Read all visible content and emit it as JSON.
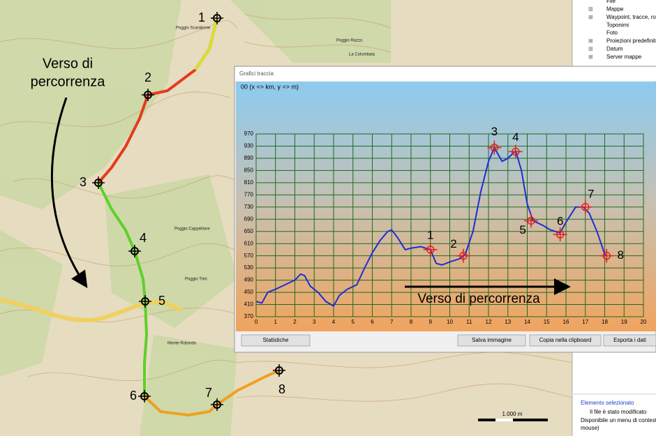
{
  "tree": {
    "items": [
      "File",
      "Mappe",
      "Waypoint, tracce, rotte",
      "Toponimi",
      "Foto",
      "Proiezioni predefinite",
      "Datum",
      "Server mappe"
    ]
  },
  "status": {
    "heading": "Elemento selezionato",
    "modified": "Il file è stato modificato",
    "hint": [
      "Disponibile un menu di contesto",
      "mouse)"
    ]
  },
  "map": {
    "waypoints": [
      "1",
      "2",
      "3",
      "4",
      "5",
      "6",
      "7",
      "8"
    ],
    "annotation": [
      "Verso di",
      "percorrenza"
    ],
    "scale": "1.000 m",
    "places": [
      "Poggio Scarabone",
      "Poggio Razzo",
      "Poggio Cappellone",
      "Poggio Trini",
      "Monte Rotondo",
      "La Colombaia"
    ]
  },
  "window": {
    "title": "Grafici traccia",
    "buttons": [
      "Statistiche",
      "Salva immagine",
      "Copia nella clipboard",
      "Esporta i dati"
    ]
  },
  "chart_data": {
    "type": "line",
    "title": "00 (x => km, y => m)",
    "series": [
      {
        "color": "#1a2fd6",
        "x": [
          0,
          0.3,
          0.6,
          1.0,
          1.5,
          2.0,
          2.3,
          2.5,
          2.8,
          3.2,
          3.6,
          4.0,
          4.3,
          4.7,
          5.2,
          5.6,
          6.0,
          6.4,
          6.8,
          7.0,
          7.3,
          7.7,
          8.0,
          8.5,
          9.0,
          9.3,
          9.6,
          10.0,
          10.5,
          10.8,
          11.2,
          11.6,
          12.0,
          12.3,
          12.7,
          13.0,
          13.4,
          13.7,
          14.0,
          14.3,
          14.8,
          15.2,
          15.7,
          16.0,
          16.5,
          16.9,
          17.2,
          17.6,
          18.0,
          18.1
        ],
        "values": [
          420,
          415,
          450,
          460,
          475,
          490,
          510,
          505,
          470,
          450,
          420,
          405,
          440,
          460,
          475,
          530,
          580,
          620,
          650,
          655,
          630,
          590,
          595,
          600,
          590,
          545,
          540,
          550,
          560,
          575,
          650,
          780,
          880,
          925,
          880,
          890,
          915,
          850,
          740,
          685,
          670,
          655,
          645,
          680,
          730,
          730,
          710,
          650,
          575,
          570
        ]
      }
    ],
    "markers": {
      "color": "#e0201c",
      "labels": [
        "1",
        "2",
        "3",
        "4",
        "5",
        "6",
        "7",
        "8"
      ],
      "x": [
        9.0,
        10.7,
        12.3,
        13.4,
        14.2,
        15.7,
        17.0,
        18.1
      ],
      "values": [
        590,
        570,
        925,
        912,
        685,
        640,
        730,
        570
      ]
    },
    "annotation": "Verso di percorrenza",
    "xlim": [
      0,
      20
    ],
    "xticks": [
      0,
      1,
      2,
      3,
      4,
      5,
      6,
      7,
      8,
      9,
      10,
      11,
      12,
      13,
      14,
      15,
      16,
      17,
      18,
      19,
      20
    ],
    "ylim": [
      370,
      970
    ],
    "yticks": [
      370,
      410,
      450,
      490,
      530,
      570,
      610,
      650,
      690,
      730,
      770,
      810,
      850,
      890,
      930,
      970
    ],
    "grid": true
  }
}
